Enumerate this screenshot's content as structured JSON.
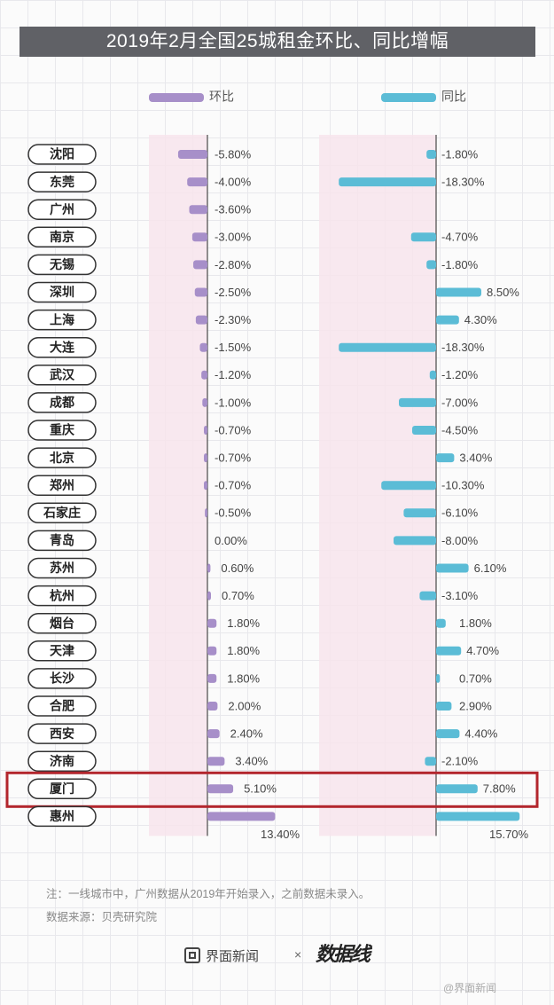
{
  "title": "2019年2月全国25城租金环比、同比增幅",
  "chart_data": {
    "type": "bar",
    "title": "2019年2月全国25城租金环比、同比增幅",
    "categories": [
      "沈阳",
      "东莞",
      "广州",
      "南京",
      "无锡",
      "深圳",
      "上海",
      "大连",
      "武汉",
      "成都",
      "重庆",
      "北京",
      "郑州",
      "石家庄",
      "青岛",
      "苏州",
      "杭州",
      "烟台",
      "天津",
      "长沙",
      "合肥",
      "西安",
      "济南",
      "厦门",
      "惠州"
    ],
    "series": [
      {
        "name": "环比",
        "color": "#a78fc9",
        "values": [
          -5.8,
          -4.0,
          -3.6,
          -3.0,
          -2.8,
          -2.5,
          -2.3,
          -1.5,
          -1.2,
          -1.0,
          -0.7,
          -0.7,
          -0.7,
          -0.5,
          0.0,
          0.6,
          0.7,
          1.8,
          1.8,
          1.8,
          2.0,
          2.4,
          3.4,
          5.1,
          13.4
        ],
        "labels": [
          "-5.80%",
          "-4.00%",
          "-3.60%",
          "-3.00%",
          "-2.80%",
          "-2.50%",
          "-2.30%",
          "-1.50%",
          "-1.20%",
          "-1.00%",
          "-0.70%",
          "-0.70%",
          "-0.70%",
          "-0.50%",
          "0.00%",
          "0.60%",
          "0.70%",
          "1.80%",
          "1.80%",
          "1.80%",
          "2.00%",
          "2.40%",
          "3.40%",
          "5.10%",
          "13.40%"
        ]
      },
      {
        "name": "同比",
        "color": "#5bbcd6",
        "values": [
          -1.8,
          -18.3,
          null,
          -4.7,
          -1.8,
          8.5,
          4.3,
          -18.3,
          -1.2,
          -7.0,
          -4.5,
          3.4,
          -10.3,
          -6.1,
          -8.0,
          6.1,
          -3.1,
          1.8,
          4.7,
          0.7,
          2.9,
          4.4,
          -2.1,
          7.8,
          15.7
        ],
        "labels": [
          "-1.80%",
          "-18.30%",
          "",
          "-4.70%",
          "-1.80%",
          "8.50%",
          "4.30%",
          "-18.30%",
          "-1.20%",
          "-7.00%",
          "-4.50%",
          "3.40%",
          "-10.30%",
          "-6.10%",
          "-8.00%",
          "6.10%",
          "-3.10%",
          "1.80%",
          "4.70%",
          "0.70%",
          "2.90%",
          "4.40%",
          "-2.10%",
          "7.80%",
          "15.70%"
        ]
      }
    ],
    "highlighted_category": "厦门",
    "highlight_color": "#b3262d",
    "legend_position": "top"
  },
  "footnote": "注：一线城市中，广州数据从2019年开始录入，之前数据未录入。",
  "source": "数据来源：贝壳研究院",
  "brand_left": "界面新闻",
  "brand_times": "×",
  "brand_right": "数据线",
  "watermark": "@界面新闻"
}
